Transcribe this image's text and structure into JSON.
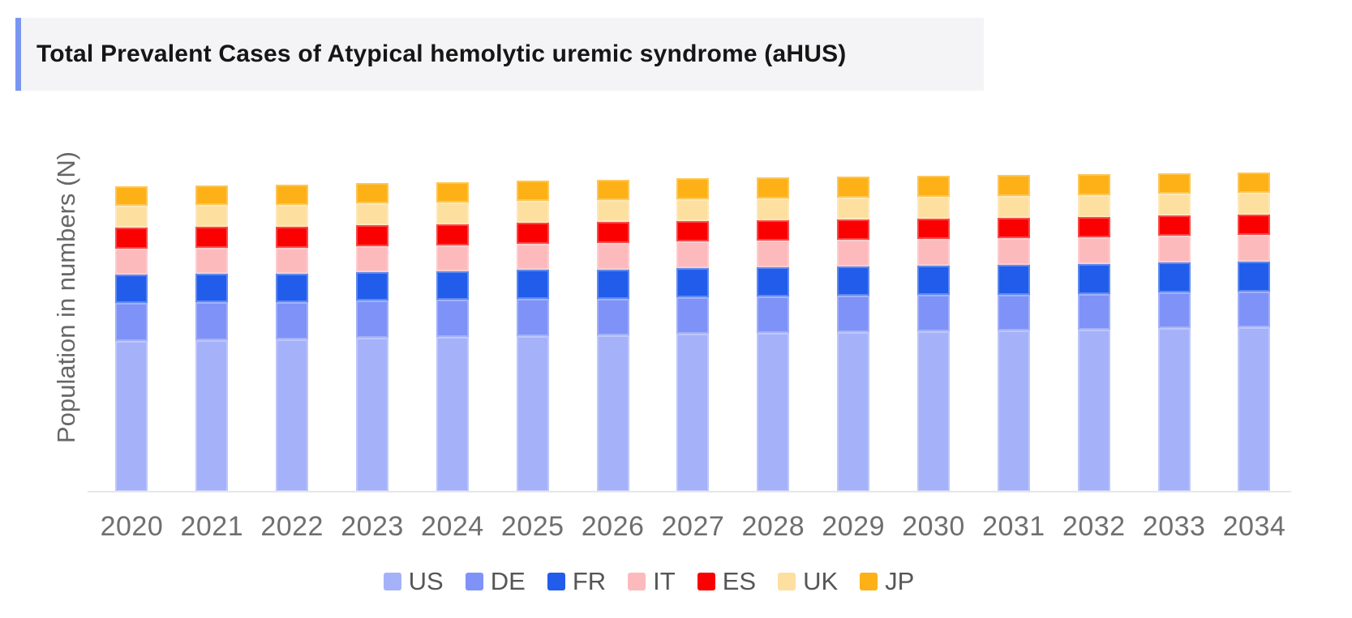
{
  "header": {
    "title": "Total Prevalent Cases of Atypical hemolytic uremic syndrome (aHUS)",
    "accent_color": "#7a96f2",
    "panel_background": "#f4f4f6"
  },
  "chart_data": {
    "type": "bar",
    "stacked": true,
    "title": "Total Prevalent Cases of Atypical hemolytic uremic syndrome (aHUS)",
    "xlabel": "",
    "ylabel": "Population in numbers (N)",
    "y_axis_tick_labels": "none",
    "value_units": "relative estimate (axis has no numeric ticks)",
    "ylim": [
      0,
      426
    ],
    "grid": false,
    "legend_position": "bottom",
    "categories": [
      "2020",
      "2021",
      "2022",
      "2023",
      "2024",
      "2025",
      "2026",
      "2027",
      "2028",
      "2029",
      "2030",
      "2031",
      "2032",
      "2033",
      "2034"
    ],
    "series": [
      {
        "name": "US",
        "color": "#a5b2fa",
        "values": [
          186,
          187,
          188,
          190,
          191,
          192,
          193,
          195,
          196,
          197,
          198,
          199,
          200,
          202,
          203
        ]
      },
      {
        "name": "DE",
        "color": "#7e92f8",
        "values": [
          47,
          47,
          46,
          46,
          46,
          46,
          45,
          45,
          45,
          45,
          45,
          44,
          44,
          44,
          44
        ]
      },
      {
        "name": "FR",
        "color": "#215ceb",
        "values": [
          35,
          35,
          35,
          35,
          35,
          36,
          36,
          36,
          36,
          36,
          36,
          37,
          37,
          37,
          37
        ]
      },
      {
        "name": "IT",
        "color": "#fdbabd",
        "values": [
          32,
          32,
          32,
          32,
          32,
          32,
          33,
          33,
          33,
          33,
          33,
          33,
          33,
          33,
          33
        ]
      },
      {
        "name": "ES",
        "color": "#fa0000",
        "values": [
          26,
          26,
          26,
          26,
          26,
          26,
          26,
          25,
          25,
          25,
          25,
          25,
          25,
          25,
          25
        ]
      },
      {
        "name": "UK",
        "color": "#fddfa0",
        "values": [
          27,
          27,
          27,
          27,
          27,
          27,
          27,
          27,
          27,
          27,
          27,
          27,
          27,
          27,
          27
        ]
      },
      {
        "name": "JP",
        "color": "#fdb116",
        "values": [
          24,
          24,
          25,
          25,
          25,
          25,
          25,
          26,
          26,
          26,
          26,
          26,
          26,
          25,
          25
        ]
      }
    ]
  }
}
